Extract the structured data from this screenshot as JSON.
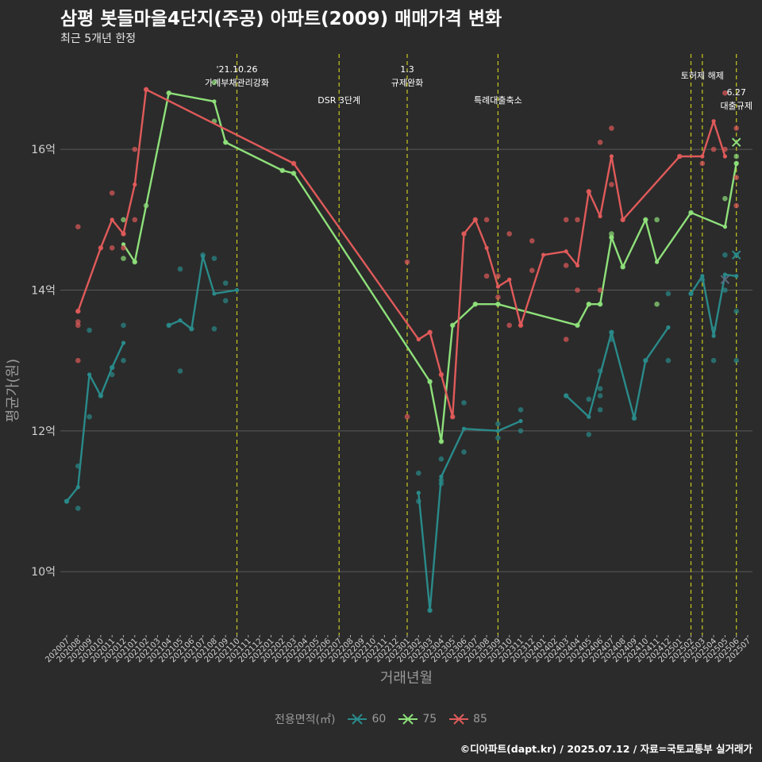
{
  "header": {
    "title": "삼평 봇들마을4단지(주공) 아파트(2009) 매매가격 변화",
    "subtitle": "최근 5개년 한정"
  },
  "caption": "©디아파트(dapt.kr) / 2025.07.12 / 자료=국토교통부 실거래가",
  "colors": {
    "background": "#2b2b2b",
    "grid": "#5a5a5a",
    "vline": "#c8c81e",
    "60": "#2a8a8a",
    "75": "#8ee07a",
    "85": "#e05a5a"
  },
  "chart_data": {
    "type": "line",
    "xlabel": "거래년월",
    "ylabel": "평균가(원)",
    "ylim": [
      9.1,
      17.4
    ],
    "yticks": [
      10,
      12,
      14,
      16
    ],
    "ytick_labels": [
      "10억",
      "12억",
      "14억",
      "16억"
    ],
    "grid": true,
    "legend_position": "bottom",
    "legend_title": "전용면적(㎡)",
    "categories": [
      "202007",
      "202008",
      "202009",
      "202010",
      "202011",
      "202012",
      "202101",
      "202102",
      "202103",
      "202104",
      "202105",
      "202106",
      "202107",
      "202108",
      "202109",
      "202110",
      "202111",
      "202112",
      "202201",
      "202202",
      "202203",
      "202204",
      "202205",
      "202206",
      "202207",
      "202208",
      "202209",
      "202210",
      "202211",
      "202212",
      "202301",
      "202302",
      "202303",
      "202304",
      "202305",
      "202306",
      "202307",
      "202308",
      "202309",
      "202310",
      "202311",
      "202312",
      "202401",
      "202402",
      "202403",
      "202404",
      "202405",
      "202406",
      "202407",
      "202408",
      "202409",
      "202410",
      "202411",
      "202412",
      "202501",
      "202502",
      "202503",
      "202504",
      "202505",
      "202506",
      "202507"
    ],
    "series": [
      {
        "name": "60",
        "line": [
          [
            0,
            11.0
          ],
          [
            1,
            11.2
          ],
          [
            2,
            12.8
          ],
          [
            3,
            12.5
          ],
          [
            4,
            12.9
          ],
          [
            5,
            13.25
          ],
          null,
          [
            9,
            13.5
          ],
          [
            10,
            13.57
          ],
          [
            11,
            13.45
          ],
          [
            12,
            14.48
          ],
          [
            13,
            13.95
          ],
          [
            15,
            14.0
          ],
          null,
          [
            31,
            11.12
          ],
          [
            32,
            9.45
          ],
          [
            33,
            11.35
          ],
          [
            35,
            12.03
          ],
          [
            38,
            12.0
          ],
          [
            40,
            12.14
          ],
          null,
          [
            44,
            12.5
          ],
          [
            46,
            12.2
          ],
          [
            48,
            13.4
          ],
          [
            50,
            12.18
          ],
          [
            51,
            13.0
          ],
          [
            53,
            13.47
          ],
          null,
          [
            55,
            13.95
          ],
          [
            56,
            14.2
          ],
          [
            57,
            13.35
          ],
          [
            58,
            14.22
          ],
          [
            59,
            14.2
          ]
        ],
        "points": [
          [
            0,
            11.0
          ],
          [
            1,
            11.5
          ],
          [
            1,
            10.9
          ],
          [
            2,
            13.43
          ],
          [
            2,
            12.2
          ],
          [
            3,
            12.5
          ],
          [
            4,
            12.9
          ],
          [
            4,
            12.8
          ],
          [
            5,
            13.5
          ],
          [
            5,
            13.0
          ],
          [
            9,
            13.5
          ],
          [
            10,
            14.3
          ],
          [
            10,
            12.85
          ],
          [
            11,
            13.45
          ],
          [
            12,
            14.5
          ],
          [
            13,
            14.45
          ],
          [
            13,
            13.45
          ],
          [
            14,
            14.1
          ],
          [
            14,
            13.85
          ],
          [
            31,
            11.4
          ],
          [
            31,
            11.0
          ],
          [
            32,
            9.45
          ],
          [
            33,
            11.3
          ],
          [
            33,
            11.25
          ],
          [
            33,
            11.6
          ],
          [
            35,
            12.4
          ],
          [
            35,
            11.7
          ],
          [
            38,
            12.1
          ],
          [
            38,
            11.9
          ],
          [
            40,
            12.3
          ],
          [
            40,
            12.0
          ],
          [
            44,
            12.5
          ],
          [
            46,
            12.45
          ],
          [
            46,
            11.95
          ],
          [
            47,
            12.85
          ],
          [
            47,
            12.6
          ],
          [
            47,
            12.5
          ],
          [
            47,
            12.3
          ],
          [
            48,
            13.4
          ],
          [
            48,
            13.3
          ],
          [
            50,
            12.18
          ],
          [
            51,
            13.0
          ],
          [
            53,
            13.95
          ],
          [
            53,
            13.0
          ],
          [
            55,
            13.95
          ],
          [
            56,
            14.15
          ],
          [
            57,
            13.45
          ],
          [
            57,
            13.0
          ],
          [
            58,
            14.5
          ],
          [
            58,
            14.0
          ],
          [
            59,
            14.5
          ],
          [
            59,
            13.7
          ],
          [
            59,
            13.0
          ]
        ]
      },
      {
        "name": "75",
        "line": [
          [
            5,
            14.65
          ],
          [
            6,
            14.4
          ],
          [
            9,
            16.8
          ],
          [
            13,
            16.68
          ],
          [
            14,
            16.1
          ],
          [
            19,
            15.7
          ],
          [
            20,
            15.66
          ],
          [
            32,
            12.7
          ],
          [
            33,
            11.85
          ],
          [
            34,
            13.5
          ],
          [
            36,
            13.8
          ],
          [
            38,
            13.8
          ],
          [
            45,
            13.5
          ],
          [
            46,
            13.8
          ],
          [
            47,
            13.8
          ],
          [
            48,
            14.75
          ],
          [
            49,
            14.33
          ],
          [
            51,
            15.0
          ],
          [
            52,
            14.4
          ],
          [
            55,
            15.1
          ],
          [
            58,
            14.9
          ],
          [
            59,
            15.8
          ]
        ],
        "points": [
          [
            5,
            15.0
          ],
          [
            5,
            14.45
          ],
          [
            6,
            14.4
          ],
          [
            7,
            15.2
          ],
          [
            9,
            16.8
          ],
          [
            13,
            16.95
          ],
          [
            13,
            16.4
          ],
          [
            14,
            16.1
          ],
          [
            19,
            15.7
          ],
          [
            20,
            15.66
          ],
          [
            32,
            12.7
          ],
          [
            33,
            11.85
          ],
          [
            34,
            13.5
          ],
          [
            36,
            13.8
          ],
          [
            38,
            13.8
          ],
          [
            45,
            13.5
          ],
          [
            46,
            13.8
          ],
          [
            47,
            13.8
          ],
          [
            48,
            14.8
          ],
          [
            48,
            14.75
          ],
          [
            49,
            14.33
          ],
          [
            51,
            15.0
          ],
          [
            52,
            15.0
          ],
          [
            52,
            13.8
          ],
          [
            55,
            15.1
          ],
          [
            58,
            15.3
          ],
          [
            59,
            15.8
          ],
          [
            59,
            15.9
          ]
        ]
      },
      {
        "name": "85",
        "line": [
          [
            1,
            13.7
          ],
          [
            3,
            14.6
          ],
          [
            4,
            15.0
          ],
          [
            5,
            14.8
          ],
          [
            6,
            15.5
          ],
          [
            7,
            16.85
          ],
          [
            20,
            15.8
          ],
          [
            31,
            13.3
          ],
          [
            32,
            13.4
          ],
          [
            33,
            12.8
          ],
          [
            34,
            12.2
          ],
          [
            35,
            14.8
          ],
          [
            36,
            15.0
          ],
          [
            37,
            14.6
          ],
          [
            38,
            14.05
          ],
          [
            39,
            14.15
          ],
          [
            40,
            13.5
          ],
          [
            42,
            14.5
          ],
          [
            44,
            14.55
          ],
          [
            45,
            14.35
          ],
          [
            46,
            15.4
          ],
          [
            47,
            15.05
          ],
          [
            48,
            15.9
          ],
          [
            49,
            15.0
          ],
          [
            54,
            15.9
          ],
          [
            56,
            15.9
          ],
          [
            57,
            16.4
          ],
          [
            58,
            15.9
          ]
        ],
        "points": [
          [
            1,
            13.7
          ],
          [
            1,
            14.9
          ],
          [
            1,
            13.55
          ],
          [
            1,
            13.5
          ],
          [
            1,
            13.0
          ],
          [
            3,
            14.6
          ],
          [
            4,
            15.38
          ],
          [
            4,
            14.6
          ],
          [
            5,
            14.8
          ],
          [
            5,
            14.6
          ],
          [
            6,
            16.0
          ],
          [
            6,
            15.0
          ],
          [
            7,
            16.85
          ],
          [
            20,
            15.8
          ],
          [
            30,
            14.4
          ],
          [
            30,
            12.2
          ],
          [
            32,
            13.4
          ],
          [
            33,
            12.8
          ],
          [
            34,
            12.2
          ],
          [
            35,
            14.8
          ],
          [
            36,
            15.0
          ],
          [
            37,
            15.0
          ],
          [
            37,
            14.2
          ],
          [
            38,
            14.2
          ],
          [
            38,
            13.9
          ],
          [
            39,
            14.8
          ],
          [
            39,
            13.5
          ],
          [
            40,
            13.5
          ],
          [
            41,
            14.7
          ],
          [
            41,
            14.28
          ],
          [
            44,
            15.0
          ],
          [
            44,
            14.35
          ],
          [
            44,
            13.3
          ],
          [
            45,
            15.0
          ],
          [
            45,
            14.0
          ],
          [
            46,
            15.4
          ],
          [
            47,
            16.1
          ],
          [
            47,
            14.0
          ],
          [
            48,
            16.3
          ],
          [
            48,
            15.5
          ],
          [
            49,
            15.0
          ],
          [
            54,
            15.9
          ],
          [
            56,
            15.8
          ],
          [
            57,
            16.0
          ],
          [
            58,
            16.8
          ],
          [
            58,
            16.0
          ],
          [
            59,
            16.3
          ],
          [
            59,
            15.6
          ],
          [
            59,
            15.2
          ]
        ]
      }
    ],
    "latest_markers": [
      {
        "series": "60",
        "x": 59,
        "y": 14.5
      },
      {
        "series": "75",
        "x": 59,
        "y": 16.1
      },
      {
        "series": "60",
        "x": 58,
        "y": 14.15
      }
    ],
    "annotations": [
      {
        "x": 15,
        "lines": [
          "'21.10.26",
          "가계부채관리강화"
        ]
      },
      {
        "x": 24,
        "lines": [
          "DSR 3단계"
        ]
      },
      {
        "x": 30,
        "lines": [
          "1.3",
          "규제완화"
        ]
      },
      {
        "x": 38,
        "lines": [
          "특례대출축소"
        ]
      },
      {
        "x": 55,
        "lines": []
      },
      {
        "x": 56,
        "lines": [
          "토허제 해제"
        ]
      },
      {
        "x": 59,
        "lines": [
          "6.27",
          "대출규제"
        ]
      }
    ]
  }
}
